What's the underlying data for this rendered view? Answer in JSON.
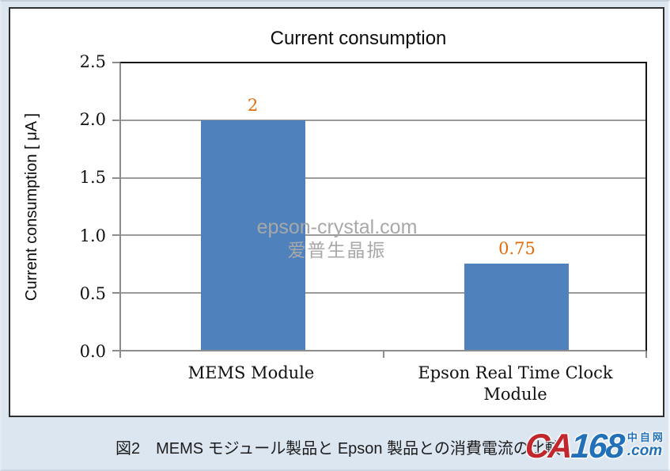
{
  "chart_data": {
    "type": "bar",
    "title": "Current consumption",
    "categories": [
      "MEMS Module",
      "Epson Real Time Clock Module"
    ],
    "categories_lines": [
      [
        "MEMS Module",
        ""
      ],
      [
        "Epson Real Time Clock",
        "Module"
      ]
    ],
    "values": [
      2,
      0.75
    ],
    "data_labels": [
      "2",
      "0.75"
    ],
    "xlabel": "",
    "ylabel": "Current consumption [ μA ]",
    "ylim": [
      0,
      2.5
    ],
    "ytick_step": 0.5,
    "yticks": [
      "2.5",
      "2.0",
      "1.5",
      "1.0",
      "0.5",
      "0.0"
    ],
    "grid": true,
    "legend": "none",
    "bar_color": "#4f81bd",
    "data_label_color": "#e36c09"
  },
  "watermark": {
    "line1": "epson-crystal.com",
    "line2": "爱普生晶振",
    "color": "#a8a8a8"
  },
  "caption": {
    "text": "図2　MEMS モジュール製品と Epson 製品との消費電流の比較"
  },
  "logo": {
    "ca": "CA",
    "num": "168",
    "cn": "中自网",
    "com": ".com",
    "red": "#c1272d",
    "blue": "#2170b8"
  },
  "colors": {
    "page_background": "#dce6f1",
    "chart_background": "#ffffff",
    "chart_border": "#2f2f2f",
    "plot_border_dark": "#141414",
    "axis_gray": "#8c8c8c",
    "gridline": "#9b9b9b"
  }
}
